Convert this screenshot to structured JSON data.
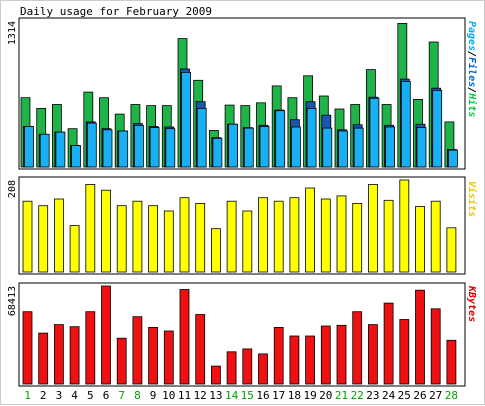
{
  "chart_data": {
    "title": "Daily usage for February 2009",
    "days": [
      "1",
      "2",
      "3",
      "4",
      "5",
      "6",
      "7",
      "8",
      "9",
      "10",
      "11",
      "12",
      "13",
      "14",
      "15",
      "16",
      "17",
      "18",
      "19",
      "20",
      "21",
      "22",
      "23",
      "24",
      "25",
      "26",
      "27",
      "28"
    ],
    "weekend_days": [
      "1",
      "7",
      "8",
      "14",
      "15",
      "21",
      "22",
      "28"
    ],
    "panels": [
      {
        "type": "bar",
        "ymax_label": "1314",
        "ymax": 1314,
        "legend": [
          "Pages",
          "/",
          "Files",
          "/",
          "Hits"
        ],
        "legend_colors": [
          "#00aaff",
          "#000000",
          "#0066cc",
          "#000000",
          "#00cc44"
        ],
        "series": [
          {
            "name": "Hits",
            "color": "#1fb34a",
            "values": [
              615,
              520,
              555,
              340,
              665,
              615,
              470,
              555,
              545,
              545,
              1140,
              770,
              325,
              550,
              545,
              570,
              720,
              615,
              810,
              630,
              515,
              555,
              865,
              555,
              1275,
              600,
              1110,
              400
            ]
          },
          {
            "name": "Files",
            "color": "#1a55ae",
            "values": [
              360,
              290,
              310,
              190,
              400,
              340,
              320,
              385,
              360,
              355,
              870,
              580,
              260,
              380,
              350,
              370,
              505,
              420,
              580,
              460,
              330,
              375,
              620,
              370,
              780,
              380,
              700,
              155
            ]
          },
          {
            "name": "Pages",
            "color": "#18b0f2",
            "values": [
              360,
              290,
              310,
              190,
              390,
              330,
              320,
              370,
              350,
              340,
              840,
              520,
              255,
              380,
              345,
              360,
              500,
              355,
              520,
              345,
              320,
              345,
              610,
              355,
              760,
              350,
              680,
              150
            ]
          }
        ]
      },
      {
        "type": "bar",
        "ymax_label": "208",
        "ymax": 208,
        "legend": [
          "Visits"
        ],
        "legend_colors": [
          "#e6c800"
        ],
        "series": [
          {
            "name": "Visits",
            "color": "#ffff00",
            "values": [
              160,
              150,
              165,
              105,
              198,
              185,
              150,
              160,
              150,
              138,
              168,
              155,
              98,
              160,
              138,
              168,
              160,
              168,
              190,
              165,
              172,
              155,
              198,
              162,
              208,
              148,
              160,
              100
            ]
          }
        ]
      },
      {
        "type": "bar",
        "ymax_label": "68413",
        "ymax": 68413,
        "legend": [
          "KBytes"
        ],
        "legend_colors": [
          "#dd0000"
        ],
        "series": [
          {
            "name": "KBytes",
            "color": "#ee1111",
            "values": [
              50500,
              35500,
              41500,
              40000,
              50500,
              68413,
              32000,
              47000,
              39500,
              37000,
              66000,
              48500,
              12500,
              22500,
              24500,
              21000,
              39500,
              33500,
              33500,
              40500,
              41000,
              50500,
              41500,
              56500,
              45000,
              65500,
              52500,
              30500
            ]
          }
        ]
      }
    ]
  }
}
